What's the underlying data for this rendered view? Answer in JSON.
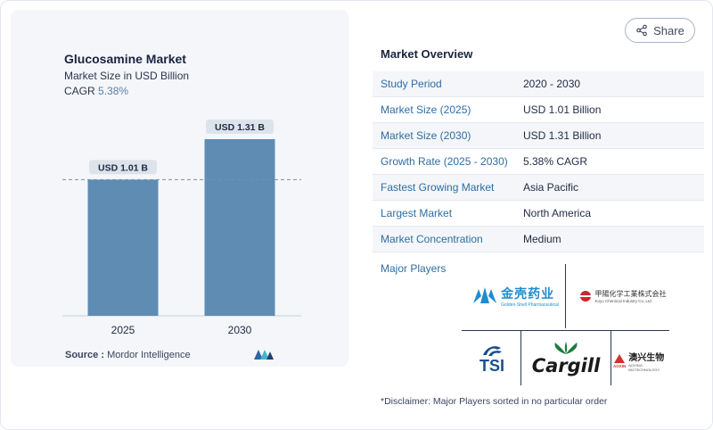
{
  "share": {
    "label": "Share",
    "icon": "share-icon"
  },
  "chart": {
    "title": "Glucosamine Market",
    "subtitle": "Market Size in USD Billion",
    "cagr_label": "CAGR",
    "cagr_value": "5.38%",
    "source_label": "Source :",
    "source_value": "Mordor Intelligence"
  },
  "chart_data": {
    "type": "bar",
    "title": "Glucosamine Market",
    "subtitle": "Market Size in USD Billion",
    "categories": [
      "2025",
      "2030"
    ],
    "values": [
      1.01,
      1.31
    ],
    "data_labels": [
      "USD 1.01 B",
      "USD 1.31 B"
    ],
    "ylabel": "",
    "xlabel": "",
    "ylim": [
      0,
      1.31
    ],
    "grid": false,
    "reference_line_value": 1.01,
    "bar_color": "#5e8cb3"
  },
  "overview": {
    "title": "Market Overview",
    "rows": [
      {
        "key": "Study Period",
        "value": "2020 - 2030"
      },
      {
        "key": "Market Size (2025)",
        "value": "USD 1.01 Billion"
      },
      {
        "key": "Market Size (2030)",
        "value": "USD 1.31 Billion"
      },
      {
        "key": "Growth Rate (2025 - 2030)",
        "value": "5.38% CAGR"
      },
      {
        "key": "Fastest Growing Market",
        "value": "Asia Pacific"
      },
      {
        "key": "Largest Market",
        "value": "North America"
      },
      {
        "key": "Market Concentration",
        "value": "Medium"
      }
    ]
  },
  "players": {
    "title": "Major Players",
    "logos": [
      {
        "name": "golden-shell-logo",
        "text": "金壳药业",
        "subtext": "Golden-Shell Pharmaceutical"
      },
      {
        "name": "koyo-chemical-logo",
        "text": "甲陽化学工業株式会社",
        "subtext": "Koyo Chemical Industry Co.,Ltd"
      },
      {
        "name": "tsi-logo",
        "text": "TSI"
      },
      {
        "name": "cargill-logo",
        "text": "Cargill"
      },
      {
        "name": "aoxing-logo",
        "text": "澳兴生物",
        "subtext": "AOXING BIOTECHNOLOGY",
        "mark": "AOXIN"
      }
    ]
  },
  "disclaimer": "*Disclaimer: Major Players sorted in no particular order"
}
